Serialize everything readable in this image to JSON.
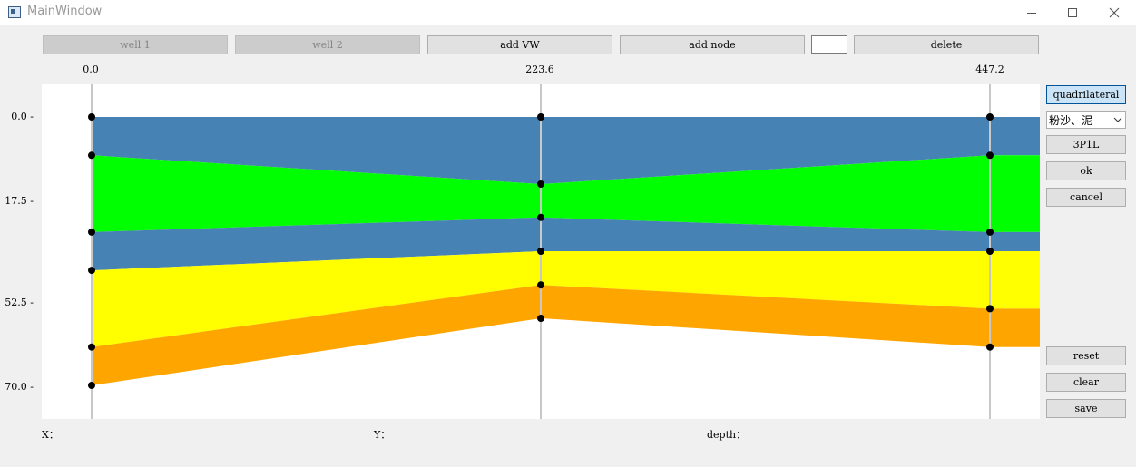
{
  "window": {
    "title": "MainWindow",
    "icon": "app-window-icon",
    "controls": [
      "minimize-icon",
      "maximize-icon",
      "close-icon"
    ]
  },
  "toolbar": {
    "well1_label": "well 1",
    "well2_label": "well 2",
    "add_vw_label": "add VW",
    "add_node_label": "add node",
    "input_value": "",
    "delete_label": "delete"
  },
  "top_ticks": [
    "0.0",
    "223.6",
    "447.2"
  ],
  "depth_ticks": [
    "0.0 -",
    "17.5 -",
    "52.5 -",
    "70.0 -"
  ],
  "side_panel": {
    "quadrilateral_label": "quadrilateral",
    "lithology_selected": "粉沙、泥",
    "code_label": "3P1L",
    "ok_label": "ok",
    "cancel_label": "cancel",
    "reset_label": "reset",
    "clear_label": "clear",
    "save_label": "save"
  },
  "status": {
    "x_label": "X：",
    "y_label": "Y：",
    "depth_label": "depth："
  },
  "colors": {
    "blue": "#4682b4",
    "green": "#00ff00",
    "yellow": "#ffff00",
    "orange": "#ffa500",
    "well_line": "#c8c8c8",
    "node": "#000000"
  },
  "chart_data": {
    "type": "area",
    "x_range": [
      0,
      447.2
    ],
    "depth_range": [
      0,
      70
    ],
    "y_inverted": true,
    "x_ticks": [
      0.0,
      223.6,
      447.2
    ],
    "y_ticks": [
      0.0,
      17.5,
      52.5,
      70.0
    ],
    "wells_x": [
      0,
      223.6,
      447.2
    ],
    "layers": [
      {
        "color": "blue",
        "top": [
          0.0,
          0.0,
          0.0
        ],
        "bottom": [
          10.0,
          17.5,
          10.0
        ]
      },
      {
        "color": "green",
        "top": [
          10.0,
          17.5,
          10.0
        ],
        "bottom": [
          30.0,
          26.2,
          30.0
        ]
      },
      {
        "color": "blue",
        "top": [
          30.0,
          26.2,
          30.0
        ],
        "bottom": [
          40.0,
          35.0,
          35.0
        ]
      },
      {
        "color": "yellow",
        "top": [
          40.0,
          35.0,
          35.0
        ],
        "bottom": [
          60.0,
          43.8,
          50.0
        ]
      },
      {
        "color": "orange",
        "top": [
          60.0,
          43.8,
          50.0
        ],
        "bottom": [
          70.0,
          52.5,
          60.0
        ]
      }
    ],
    "nodes": [
      [
        0.0,
        10.0,
        30.0,
        40.0,
        60.0,
        70.0
      ],
      [
        0.0,
        17.5,
        26.2,
        35.0,
        43.8,
        52.5
      ],
      [
        0.0,
        10.0,
        30.0,
        35.0,
        50.0,
        60.0
      ]
    ]
  }
}
